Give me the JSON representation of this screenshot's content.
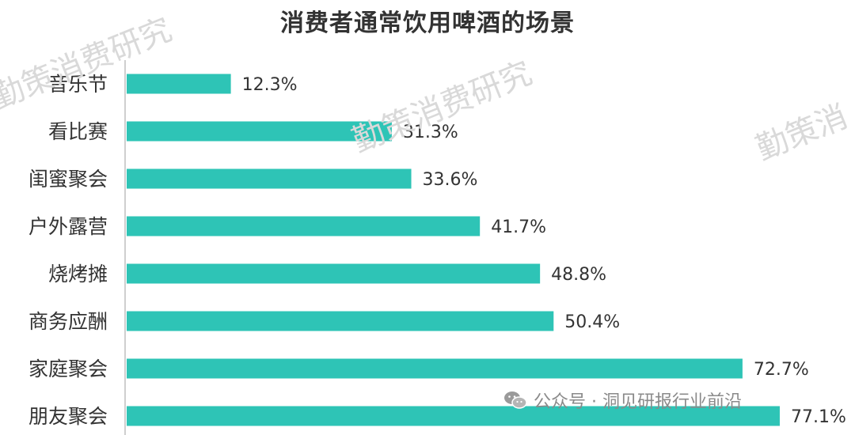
{
  "chart_data": {
    "type": "bar",
    "orientation": "horizontal",
    "title": "消费者通常饮用啤酒的场景",
    "categories": [
      "音乐节",
      "看比赛",
      "闺蜜聚会",
      "户外露营",
      "烧烤摊",
      "商务应酬",
      "家庭聚会",
      "朋友聚会"
    ],
    "values": [
      12.3,
      31.3,
      33.6,
      41.7,
      48.8,
      50.4,
      72.7,
      77.1
    ],
    "value_labels": [
      "12.3%",
      "31.3%",
      "33.6%",
      "41.7%",
      "48.8%",
      "50.4%",
      "72.7%",
      "77.1%"
    ],
    "xlim": [
      0,
      80
    ],
    "grid": false,
    "bar_color": "#2ec4b6"
  },
  "watermarks": [
    "勤策消费研究",
    "勤策消费研究",
    "勤策消"
  ],
  "source": {
    "icon": "wechat-icon",
    "text": "公众号 · 洞见研报行业前沿"
  }
}
